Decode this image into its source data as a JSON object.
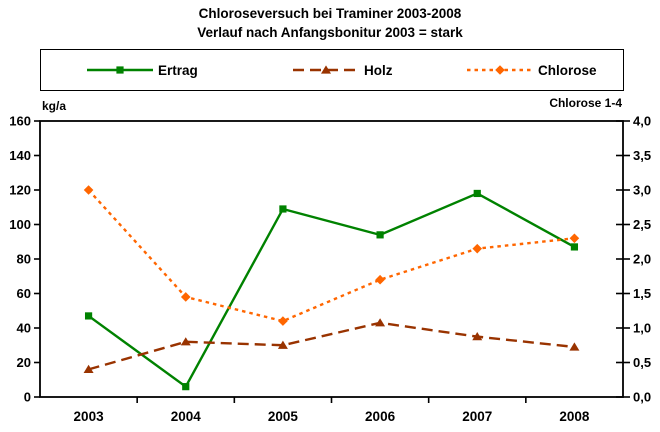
{
  "title": "Chloroseversuch bei Traminer 2003-2008",
  "subtitle": "Verlauf nach Anfangsbonitur 2003 = stark",
  "chart_data": {
    "type": "line",
    "categories": [
      "2003",
      "2004",
      "2005",
      "2006",
      "2007",
      "2008"
    ],
    "series": [
      {
        "name": "Ertrag",
        "axis": "left",
        "color": "#008200",
        "line_style": "solid",
        "marker": "square",
        "values": [
          47,
          6,
          109,
          94,
          118,
          87
        ]
      },
      {
        "name": "Holz",
        "axis": "left",
        "color": "#993300",
        "line_style": "dashed",
        "marker": "triangle",
        "values": [
          16,
          32,
          30,
          43,
          35,
          29
        ]
      },
      {
        "name": "Chlorose",
        "axis": "right",
        "color": "#FF6600",
        "line_style": "dotted",
        "marker": "diamond",
        "values": [
          3.0,
          1.45,
          1.1,
          1.7,
          2.15,
          2.3
        ]
      }
    ],
    "left_axis": {
      "title": "kg/a",
      "min": 0,
      "max": 160,
      "step": 20,
      "tick_labels": [
        "0",
        "20",
        "40",
        "60",
        "80",
        "100",
        "120",
        "140",
        "160"
      ]
    },
    "right_axis": {
      "title": "Chlorose 1-4",
      "min": 0,
      "max": 4,
      "step": 0.5,
      "tick_labels": [
        "0,0",
        "0,5",
        "1,0",
        "1,5",
        "2,0",
        "2,5",
        "3,0",
        "3,5",
        "4,0"
      ]
    },
    "legend_position": "top",
    "grid": false,
    "plot_background": "#ffffff",
    "axis_color": "#000000"
  }
}
